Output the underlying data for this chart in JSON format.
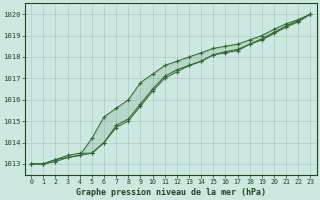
{
  "xlabel": "Graphe pression niveau de la mer (hPa)",
  "x": [
    0,
    1,
    2,
    3,
    4,
    5,
    6,
    7,
    8,
    9,
    10,
    11,
    12,
    13,
    14,
    15,
    16,
    17,
    18,
    19,
    20,
    21,
    22,
    23
  ],
  "series1": [
    1013.0,
    1013.0,
    1013.2,
    1013.4,
    1013.5,
    1013.5,
    1014.0,
    1014.8,
    1015.1,
    1015.8,
    1016.5,
    1017.1,
    1017.4,
    1017.6,
    1017.8,
    1018.1,
    1018.2,
    1018.3,
    1018.6,
    1018.8,
    1019.1,
    1019.4,
    1019.65,
    1020.0
  ],
  "series2": [
    1013.0,
    1013.0,
    1013.2,
    1013.3,
    1013.4,
    1014.2,
    1015.2,
    1015.6,
    1016.0,
    1016.8,
    1017.2,
    1017.6,
    1017.8,
    1018.0,
    1018.2,
    1018.4,
    1018.5,
    1018.6,
    1018.8,
    1019.0,
    1019.3,
    1019.55,
    1019.75,
    1020.0
  ],
  "series3": [
    1013.0,
    1013.0,
    1013.1,
    1013.3,
    1013.4,
    1013.5,
    1014.0,
    1014.7,
    1015.0,
    1015.7,
    1016.4,
    1017.0,
    1017.3,
    1017.6,
    1017.8,
    1018.1,
    1018.25,
    1018.35,
    1018.6,
    1018.85,
    1019.15,
    1019.45,
    1019.7,
    1020.0
  ],
  "line_color": "#2d6a2d",
  "marker_color": "#2d6a2d",
  "bg_color": "#cce8e0",
  "grid_color": "#aacccc",
  "text_color": "#1a4a1a",
  "ylim_min": 1012.5,
  "ylim_max": 1020.5,
  "xtick_labels": [
    "0",
    "1",
    "2",
    "3",
    "4",
    "5",
    "6",
    "7",
    "8",
    "9",
    "10",
    "11",
    "12",
    "13",
    "14",
    "15",
    "16",
    "17",
    "18",
    "19",
    "20",
    "21",
    "22",
    "23"
  ]
}
